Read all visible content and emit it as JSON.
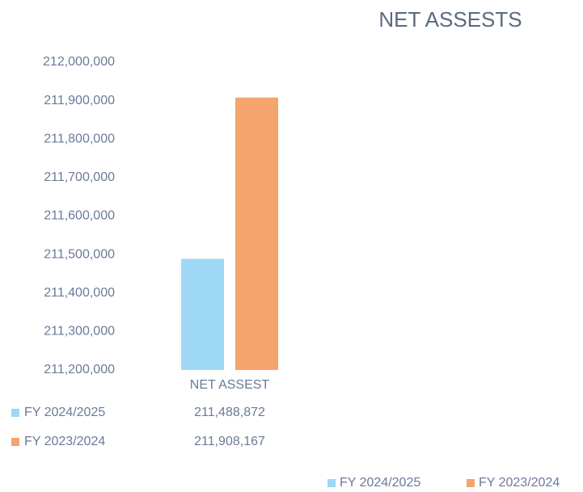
{
  "chart_data": {
    "type": "bar",
    "title": "NET ASSESTS",
    "categories": [
      "NET ASSEST"
    ],
    "series": [
      {
        "name": "FY 2024/2025",
        "color": "#9fd7f7",
        "values": [
          211488872
        ],
        "value_labels": [
          "211,488,872"
        ]
      },
      {
        "name": "FY 2023/2024",
        "color": "#f5a46e",
        "values": [
          211908167
        ],
        "value_labels": [
          "211,908,167"
        ]
      }
    ],
    "ylim": [
      211200000,
      212000000
    ],
    "yticks": [
      {
        "value": 211200000,
        "label": "211,200,000"
      },
      {
        "value": 211300000,
        "label": "211,300,000"
      },
      {
        "value": 211400000,
        "label": "211,400,000"
      },
      {
        "value": 211500000,
        "label": "211,500,000"
      },
      {
        "value": 211600000,
        "label": "211,600,000"
      },
      {
        "value": 211700000,
        "label": "211,700,000"
      },
      {
        "value": 211800000,
        "label": "211,800,000"
      },
      {
        "value": 211900000,
        "label": "211,900,000"
      },
      {
        "value": 212000000,
        "label": "212,000,000"
      }
    ],
    "grid": false,
    "legend": "bottom-right"
  }
}
